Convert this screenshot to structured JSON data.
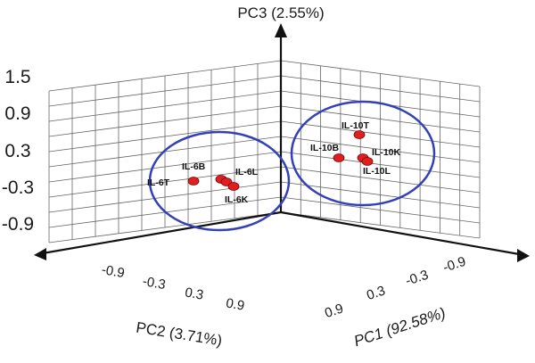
{
  "chart_data": {
    "type": "scatter",
    "axes": {
      "z": {
        "label": "PC3 (2.55%)",
        "ticks": [
          "1.5",
          "0.9",
          "0.3",
          "-0.3",
          "-0.9"
        ],
        "range": [
          -1.5,
          1.5
        ]
      },
      "pc2": {
        "label": "PC2 (3.71%)",
        "ticks": [
          "-0.9",
          "-0.3",
          "0.3",
          "0.9"
        ],
        "range": [
          -1.5,
          1.5
        ]
      },
      "pc1": {
        "label": "PC1 (92.58%)",
        "ticks": [
          "0.9",
          "0.3",
          "-0.3",
          "-0.9"
        ],
        "range": [
          -1.5,
          1.5
        ]
      }
    },
    "grid": true,
    "points": [
      {
        "label": "IL-6T",
        "pc1": -1.1,
        "pc2": -0.6,
        "pc3": -0.3
      },
      {
        "label": "IL-6B",
        "pc1": -1.0,
        "pc2": -0.4,
        "pc3": -0.3
      },
      {
        "label": "IL-6L",
        "pc1": -1.0,
        "pc2": -0.35,
        "pc3": -0.35
      },
      {
        "label": "IL-6K",
        "pc1": -1.0,
        "pc2": -0.3,
        "pc3": -0.4
      },
      {
        "label": "IL-10T",
        "pc1": 1.05,
        "pc2": 0.15,
        "pc3": 0.55
      },
      {
        "label": "IL-10B",
        "pc1": 1.0,
        "pc2": 0.1,
        "pc3": 0.25
      },
      {
        "label": "IL-10K",
        "pc1": 1.0,
        "pc2": 0.15,
        "pc3": 0.25
      },
      {
        "label": "IL-10L",
        "pc1": 1.0,
        "pc2": 0.15,
        "pc3": 0.2
      }
    ],
    "clusters": [
      {
        "members": [
          "IL-6T",
          "IL-6B",
          "IL-6L",
          "IL-6K"
        ],
        "color": "#3340b8"
      },
      {
        "members": [
          "IL-10T",
          "IL-10B",
          "IL-10K",
          "IL-10L"
        ],
        "color": "#3340b8"
      }
    ],
    "point_color": "#e02020"
  }
}
